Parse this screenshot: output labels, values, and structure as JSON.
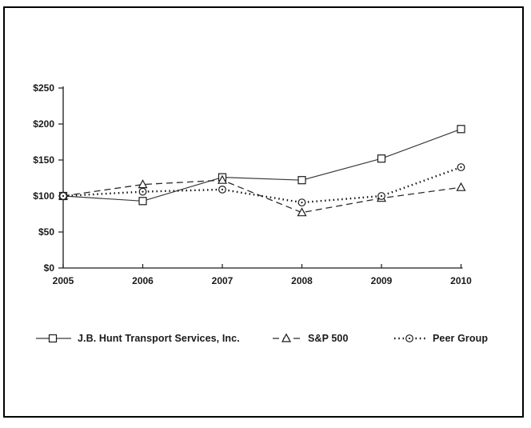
{
  "page": {
    "background_color": "#ffffff",
    "ink_color": "#1a1a1a"
  },
  "chart_data": {
    "type": "line",
    "title": "",
    "xlabel": "",
    "ylabel": "",
    "categories": [
      "2005",
      "2006",
      "2007",
      "2008",
      "2009",
      "2010"
    ],
    "series": [
      {
        "name": "J.B. Hunt Transport Services, Inc.",
        "values": [
          100,
          93,
          126,
          122,
          152,
          193
        ],
        "line": "solid",
        "marker": "square"
      },
      {
        "name": "S&P 500",
        "values": [
          100,
          116,
          122,
          77,
          97,
          112
        ],
        "line": "dashed",
        "marker": "triangle"
      },
      {
        "name": "Peer Group",
        "values": [
          100,
          106,
          109,
          91,
          100,
          140
        ],
        "line": "dotted",
        "marker": "circle-dot"
      }
    ],
    "ylim": [
      0,
      250
    ],
    "ytick_step": 50,
    "ytick_labels": [
      "$0",
      "$50",
      "$100",
      "$150",
      "$200",
      "$250"
    ],
    "grid": false,
    "legend_position": "bottom",
    "index_base_note": "all series indexed to 100 at 2005"
  },
  "legend": {
    "items": [
      {
        "label": "J.B. Hunt Transport Services, Inc."
      },
      {
        "label": "S&P 500"
      },
      {
        "label": "Peer Group"
      }
    ]
  }
}
